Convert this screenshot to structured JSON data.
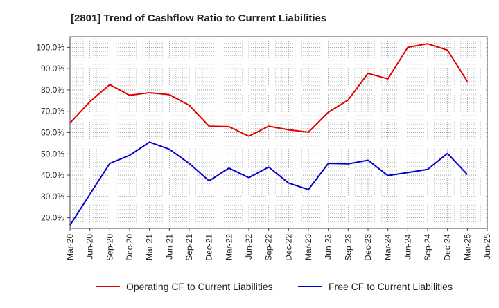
{
  "chart_data": {
    "type": "line",
    "title": "[2801]  Trend of Cashflow Ratio to Current Liabilities",
    "xlabel": "",
    "ylabel": "",
    "x_ticks": [
      "Mar-20",
      "Jun-20",
      "Sep-20",
      "Dec-20",
      "Mar-21",
      "Jun-21",
      "Sep-21",
      "Dec-21",
      "Mar-22",
      "Jun-22",
      "Sep-22",
      "Dec-22",
      "Mar-23",
      "Jun-23",
      "Sep-23",
      "Dec-23",
      "Mar-24",
      "Jun-24",
      "Sep-24",
      "Dec-24",
      "Mar-25",
      "Jun-25"
    ],
    "y_ticks": [
      "20.0%",
      "30.0%",
      "40.0%",
      "50.0%",
      "60.0%",
      "70.0%",
      "80.0%",
      "90.0%",
      "100.0%"
    ],
    "ylim": [
      15,
      105
    ],
    "grid": true,
    "legend_position": "bottom",
    "x": [
      "Mar-20",
      "Jun-20",
      "Sep-20",
      "Dec-20",
      "Mar-21",
      "Jun-21",
      "Sep-21",
      "Dec-21",
      "Mar-22",
      "Jun-22",
      "Sep-22",
      "Dec-22",
      "Mar-23",
      "Jun-23",
      "Sep-23",
      "Dec-23",
      "Mar-24",
      "Jun-24",
      "Sep-24",
      "Dec-24",
      "Mar-25"
    ],
    "series": [
      {
        "name": "Operating CF to Current Liabilities",
        "color": "#e00000",
        "values": [
          64.5,
          74.5,
          82.5,
          77.5,
          78.7,
          77.8,
          72.8,
          63.0,
          62.8,
          58.3,
          63.0,
          61.3,
          60.2,
          69.5,
          75.3,
          87.8,
          85.2,
          100.0,
          101.7,
          98.7,
          84.0
        ]
      },
      {
        "name": "Free CF to Current Liabilities",
        "color": "#0000cc",
        "values": [
          16.5,
          31.0,
          45.5,
          49.3,
          55.5,
          52.2,
          45.5,
          37.3,
          43.3,
          38.8,
          43.8,
          36.3,
          33.2,
          45.5,
          45.3,
          47.0,
          39.8,
          41.2,
          42.7,
          50.2,
          40.3
        ]
      }
    ]
  }
}
